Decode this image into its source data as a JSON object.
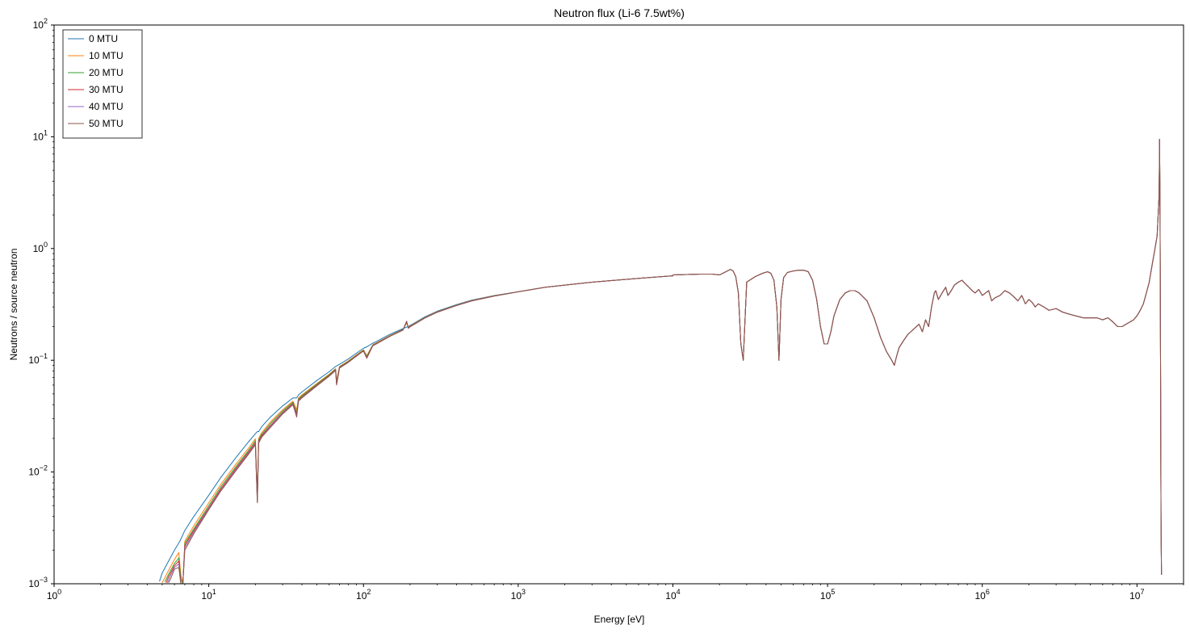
{
  "chart_data": {
    "type": "line",
    "title": "Neutron flux (Li-6 7.5wt%)",
    "xlabel": "Energy [eV]",
    "ylabel": "Neutrons / source neutron",
    "xscale": "log",
    "yscale": "log",
    "xlim": [
      1,
      20000000
    ],
    "ylim": [
      0.001,
      100
    ],
    "x_tick_labels": [
      {
        "value": 1,
        "base": "10",
        "exp": "0"
      },
      {
        "value": 10,
        "base": "10",
        "exp": "1"
      },
      {
        "value": 100,
        "base": "10",
        "exp": "2"
      },
      {
        "value": 1000,
        "base": "10",
        "exp": "3"
      },
      {
        "value": 10000,
        "base": "10",
        "exp": "4"
      },
      {
        "value": 100000,
        "base": "10",
        "exp": "5"
      },
      {
        "value": 1000000,
        "base": "10",
        "exp": "6"
      },
      {
        "value": 10000000,
        "base": "10",
        "exp": "7"
      }
    ],
    "y_tick_labels": [
      {
        "value": 0.001,
        "base": "10",
        "exp": "−3"
      },
      {
        "value": 0.01,
        "base": "10",
        "exp": "−2"
      },
      {
        "value": 0.1,
        "base": "10",
        "exp": "−1"
      },
      {
        "value": 1,
        "base": "10",
        "exp": "0"
      },
      {
        "value": 10,
        "base": "10",
        "exp": "1"
      },
      {
        "value": 100,
        "base": "10",
        "exp": "2"
      }
    ],
    "grid": false,
    "legend_position": "top-left",
    "shared_curve": {
      "x": [
        10000,
        15000,
        18000,
        20000,
        22000,
        23500,
        24500,
        25500,
        26500,
        27500,
        28500,
        30000,
        34000,
        38000,
        41000,
        43000,
        45000,
        47000,
        48500,
        50000,
        52000,
        55000,
        60000,
        65000,
        70000,
        75000,
        80000,
        85000,
        90000,
        95000,
        100000,
        105000,
        110000,
        120000,
        130000,
        140000,
        150000,
        160000,
        180000,
        200000,
        220000,
        240000,
        260000,
        270000,
        280000,
        290000,
        310000,
        330000,
        360000,
        390000,
        410000,
        430000,
        450000,
        470000,
        490000,
        500000,
        520000,
        550000,
        580000,
        600000,
        630000,
        660000,
        700000,
        740000,
        780000,
        820000,
        860000,
        900000,
        950000,
        1000000,
        1050000,
        1100000,
        1150000,
        1200000,
        1300000,
        1400000,
        1500000,
        1600000,
        1700000,
        1800000,
        1900000,
        2000000,
        2100000,
        2200000,
        2300000,
        2500000,
        2700000,
        3000000,
        3300000,
        3600000,
        4000000,
        4500000,
        5000000,
        5500000,
        6000000,
        6500000,
        7000000,
        7500000,
        8000000,
        8500000,
        9000000,
        9500000,
        10000000,
        10500000,
        11000000,
        11500000,
        12000000,
        12500000,
        13000000,
        13500000,
        13900000,
        14000000,
        14100000,
        14200000,
        14300000,
        14400000
      ],
      "y": [
        0.58,
        0.59,
        0.59,
        0.58,
        0.62,
        0.65,
        0.63,
        0.56,
        0.4,
        0.14,
        0.1,
        0.5,
        0.56,
        0.6,
        0.62,
        0.6,
        0.52,
        0.3,
        0.1,
        0.35,
        0.55,
        0.61,
        0.63,
        0.64,
        0.64,
        0.62,
        0.52,
        0.35,
        0.2,
        0.14,
        0.14,
        0.18,
        0.25,
        0.35,
        0.4,
        0.42,
        0.42,
        0.4,
        0.34,
        0.24,
        0.16,
        0.12,
        0.1,
        0.09,
        0.11,
        0.13,
        0.15,
        0.17,
        0.19,
        0.21,
        0.18,
        0.23,
        0.2,
        0.3,
        0.4,
        0.42,
        0.35,
        0.4,
        0.45,
        0.38,
        0.42,
        0.47,
        0.5,
        0.52,
        0.48,
        0.45,
        0.42,
        0.4,
        0.43,
        0.38,
        0.4,
        0.42,
        0.34,
        0.36,
        0.38,
        0.42,
        0.4,
        0.37,
        0.34,
        0.38,
        0.32,
        0.35,
        0.33,
        0.3,
        0.32,
        0.3,
        0.28,
        0.29,
        0.27,
        0.26,
        0.25,
        0.24,
        0.24,
        0.24,
        0.23,
        0.24,
        0.22,
        0.2,
        0.2,
        0.21,
        0.22,
        0.23,
        0.25,
        0.28,
        0.32,
        0.4,
        0.5,
        0.7,
        0.95,
        1.3,
        3.0,
        9.5,
        2.0,
        0.1,
        0.004,
        0.0012
      ]
    },
    "series": [
      {
        "name": "0 MTU",
        "color": "#1f77b4",
        "x": [
          4.8,
          5.0,
          5.5,
          6.0,
          6.5,
          7.0,
          8,
          10,
          12,
          15,
          18,
          20,
          20.6,
          21,
          22,
          25,
          30,
          35,
          37,
          38,
          40,
          50,
          60,
          66,
          67,
          70,
          80,
          95,
          100,
          105,
          115,
          120,
          130,
          150,
          180,
          190,
          195,
          200,
          210,
          250,
          300,
          400,
          500,
          700,
          1000,
          1500,
          2000,
          3000,
          5000,
          7000,
          10000
        ],
        "y": [
          0.00105,
          0.00125,
          0.0016,
          0.002,
          0.0024,
          0.003,
          0.004,
          0.0062,
          0.009,
          0.0135,
          0.0185,
          0.022,
          0.023,
          0.023,
          0.0255,
          0.031,
          0.039,
          0.046,
          0.046,
          0.049,
          0.052,
          0.066,
          0.079,
          0.088,
          0.089,
          0.092,
          0.103,
          0.122,
          0.128,
          0.132,
          0.142,
          0.146,
          0.155,
          0.172,
          0.192,
          0.198,
          0.2,
          0.205,
          0.213,
          0.245,
          0.275,
          0.315,
          0.345,
          0.38,
          0.41,
          0.45,
          0.47,
          0.5,
          0.53,
          0.55,
          0.57
        ]
      },
      {
        "name": "10 MTU",
        "color": "#ff7f0e",
        "x": [
          5.0,
          5.5,
          6.0,
          6.4,
          6.6,
          6.8,
          7.0,
          8,
          10,
          12,
          15,
          18,
          20,
          20.6,
          21,
          22,
          25,
          30,
          35,
          37,
          38,
          40,
          50,
          60,
          66,
          67,
          70,
          80,
          95,
          100,
          105,
          115,
          120,
          130,
          150,
          180,
          190,
          195,
          200,
          210,
          250,
          300,
          400,
          500,
          700,
          1000,
          1500,
          2000,
          3000,
          5000,
          7000,
          10000
        ],
        "y": [
          0.00102,
          0.00132,
          0.00165,
          0.0019,
          0.0012,
          0.001,
          0.0024,
          0.0033,
          0.0053,
          0.0078,
          0.0118,
          0.0162,
          0.0198,
          0.0065,
          0.02,
          0.0225,
          0.028,
          0.036,
          0.043,
          0.036,
          0.046,
          0.049,
          0.062,
          0.075,
          0.084,
          0.066,
          0.088,
          0.099,
          0.118,
          0.124,
          0.11,
          0.138,
          0.142,
          0.151,
          0.168,
          0.189,
          0.215,
          0.196,
          0.202,
          0.21,
          0.242,
          0.272,
          0.312,
          0.342,
          0.378,
          0.41,
          0.45,
          0.47,
          0.5,
          0.53,
          0.55,
          0.57
        ]
      },
      {
        "name": "20 MTU",
        "color": "#2ca02c",
        "x": [
          5.2,
          5.5,
          6.0,
          6.4,
          6.6,
          6.8,
          7.0,
          8,
          10,
          12,
          15,
          18,
          20,
          20.6,
          21,
          22,
          25,
          30,
          35,
          37,
          38,
          40,
          50,
          60,
          66,
          67,
          70,
          80,
          95,
          100,
          105,
          115,
          120,
          130,
          150,
          180,
          190,
          195,
          200,
          210,
          250,
          300,
          400,
          500,
          700,
          1000,
          1500,
          2000,
          3000,
          5000,
          7000,
          10000
        ],
        "y": [
          0.00104,
          0.00122,
          0.00152,
          0.0017,
          0.0011,
          0.001,
          0.0023,
          0.0031,
          0.005,
          0.0074,
          0.0112,
          0.0155,
          0.019,
          0.0058,
          0.0193,
          0.0218,
          0.027,
          0.035,
          0.042,
          0.034,
          0.045,
          0.048,
          0.061,
          0.074,
          0.083,
          0.063,
          0.087,
          0.098,
          0.117,
          0.123,
          0.108,
          0.137,
          0.141,
          0.15,
          0.167,
          0.188,
          0.22,
          0.195,
          0.201,
          0.209,
          0.241,
          0.271,
          0.311,
          0.341,
          0.377,
          0.41,
          0.45,
          0.47,
          0.5,
          0.53,
          0.55,
          0.57
        ]
      },
      {
        "name": "30 MTU",
        "color": "#d62728",
        "x": [
          5.3,
          5.5,
          6.0,
          6.4,
          6.6,
          6.8,
          7.0,
          8,
          10,
          12,
          15,
          18,
          20,
          20.6,
          21,
          22,
          25,
          30,
          35,
          37,
          38,
          40,
          50,
          60,
          66,
          67,
          70,
          80,
          95,
          100,
          105,
          115,
          120,
          130,
          150,
          180,
          190,
          195,
          200,
          210,
          250,
          300,
          400,
          500,
          700,
          1000,
          1500,
          2000,
          3000,
          5000,
          7000,
          10000
        ],
        "y": [
          0.00102,
          0.00116,
          0.00145,
          0.0016,
          0.001,
          0.001,
          0.0022,
          0.003,
          0.0048,
          0.0071,
          0.0108,
          0.015,
          0.0183,
          0.0055,
          0.0188,
          0.0212,
          0.026,
          0.034,
          0.041,
          0.033,
          0.044,
          0.047,
          0.06,
          0.073,
          0.082,
          0.062,
          0.086,
          0.097,
          0.116,
          0.122,
          0.106,
          0.136,
          0.14,
          0.149,
          0.166,
          0.187,
          0.222,
          0.194,
          0.2,
          0.208,
          0.24,
          0.27,
          0.31,
          0.34,
          0.376,
          0.41,
          0.45,
          0.47,
          0.5,
          0.53,
          0.55,
          0.57
        ]
      },
      {
        "name": "40 MTU",
        "color": "#9467bd",
        "x": [
          5.4,
          5.6,
          6.0,
          6.4,
          6.6,
          6.8,
          7.0,
          8,
          10,
          12,
          15,
          18,
          20,
          20.6,
          21,
          22,
          25,
          30,
          35,
          37,
          38,
          40,
          50,
          60,
          66,
          67,
          70,
          80,
          95,
          100,
          105,
          115,
          120,
          130,
          150,
          180,
          190,
          195,
          200,
          210,
          250,
          300,
          400,
          500,
          700,
          1000,
          1500,
          2000,
          3000,
          5000,
          7000,
          10000
        ],
        "y": [
          0.00102,
          0.00115,
          0.0014,
          0.0015,
          0.001,
          0.001,
          0.0021,
          0.0029,
          0.0047,
          0.0069,
          0.0105,
          0.0146,
          0.0178,
          0.0054,
          0.0184,
          0.0208,
          0.0255,
          0.0335,
          0.0405,
          0.032,
          0.0435,
          0.0465,
          0.0595,
          0.0725,
          0.0815,
          0.061,
          0.0855,
          0.0965,
          0.1155,
          0.1215,
          0.105,
          0.1355,
          0.1395,
          0.1485,
          0.1655,
          0.1865,
          0.223,
          0.1935,
          0.1995,
          0.2075,
          0.2395,
          0.2695,
          0.3095,
          0.3395,
          0.3755,
          0.41,
          0.45,
          0.47,
          0.5,
          0.53,
          0.55,
          0.57
        ]
      },
      {
        "name": "50 MTU",
        "color": "#8c564b",
        "x": [
          5.5,
          5.7,
          6.0,
          6.4,
          6.6,
          6.8,
          7.0,
          8,
          10,
          12,
          15,
          18,
          20,
          20.6,
          21,
          22,
          25,
          30,
          35,
          37,
          38,
          40,
          50,
          60,
          66,
          67,
          70,
          80,
          95,
          100,
          105,
          115,
          120,
          130,
          150,
          180,
          190,
          195,
          200,
          210,
          250,
          300,
          400,
          500,
          700,
          1000,
          1500,
          2000,
          3000,
          5000,
          7000,
          10000
        ],
        "y": [
          0.00102,
          0.00113,
          0.00135,
          0.0014,
          0.001,
          0.001,
          0.002,
          0.0028,
          0.0046,
          0.0068,
          0.0103,
          0.0143,
          0.0175,
          0.0053,
          0.0181,
          0.0205,
          0.025,
          0.033,
          0.04,
          0.031,
          0.043,
          0.046,
          0.059,
          0.072,
          0.081,
          0.06,
          0.085,
          0.096,
          0.115,
          0.121,
          0.104,
          0.135,
          0.139,
          0.148,
          0.165,
          0.186,
          0.224,
          0.193,
          0.199,
          0.207,
          0.239,
          0.269,
          0.309,
          0.339,
          0.375,
          0.41,
          0.45,
          0.47,
          0.5,
          0.53,
          0.55,
          0.57
        ]
      }
    ]
  }
}
